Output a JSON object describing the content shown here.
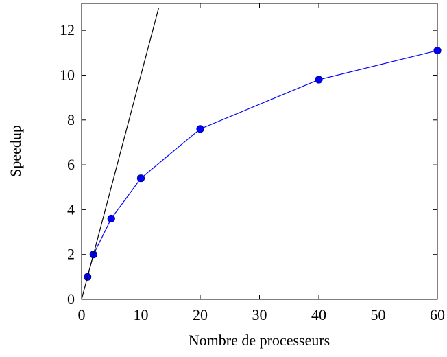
{
  "chart_data": {
    "type": "line",
    "title": "",
    "xlabel": "Nombre de processeurs",
    "ylabel": "Speedup",
    "xlim": [
      0,
      60
    ],
    "ylim": [
      0,
      13.2
    ],
    "xticks": [
      0,
      10,
      20,
      30,
      40,
      50,
      60
    ],
    "yticks": [
      0,
      2,
      4,
      6,
      8,
      10,
      12
    ],
    "grid": false,
    "legend": "none",
    "series": [
      {
        "x": [
          1,
          2,
          5,
          10,
          20,
          40,
          60
        ],
        "y": [
          1.0,
          2.0,
          3.6,
          5.4,
          7.6,
          9.8,
          11.1
        ],
        "color": "#0000ff",
        "marker": "circle"
      },
      {
        "x": [
          0,
          13
        ],
        "y": [
          0,
          13
        ],
        "color": "#000000",
        "marker": "none"
      }
    ]
  }
}
